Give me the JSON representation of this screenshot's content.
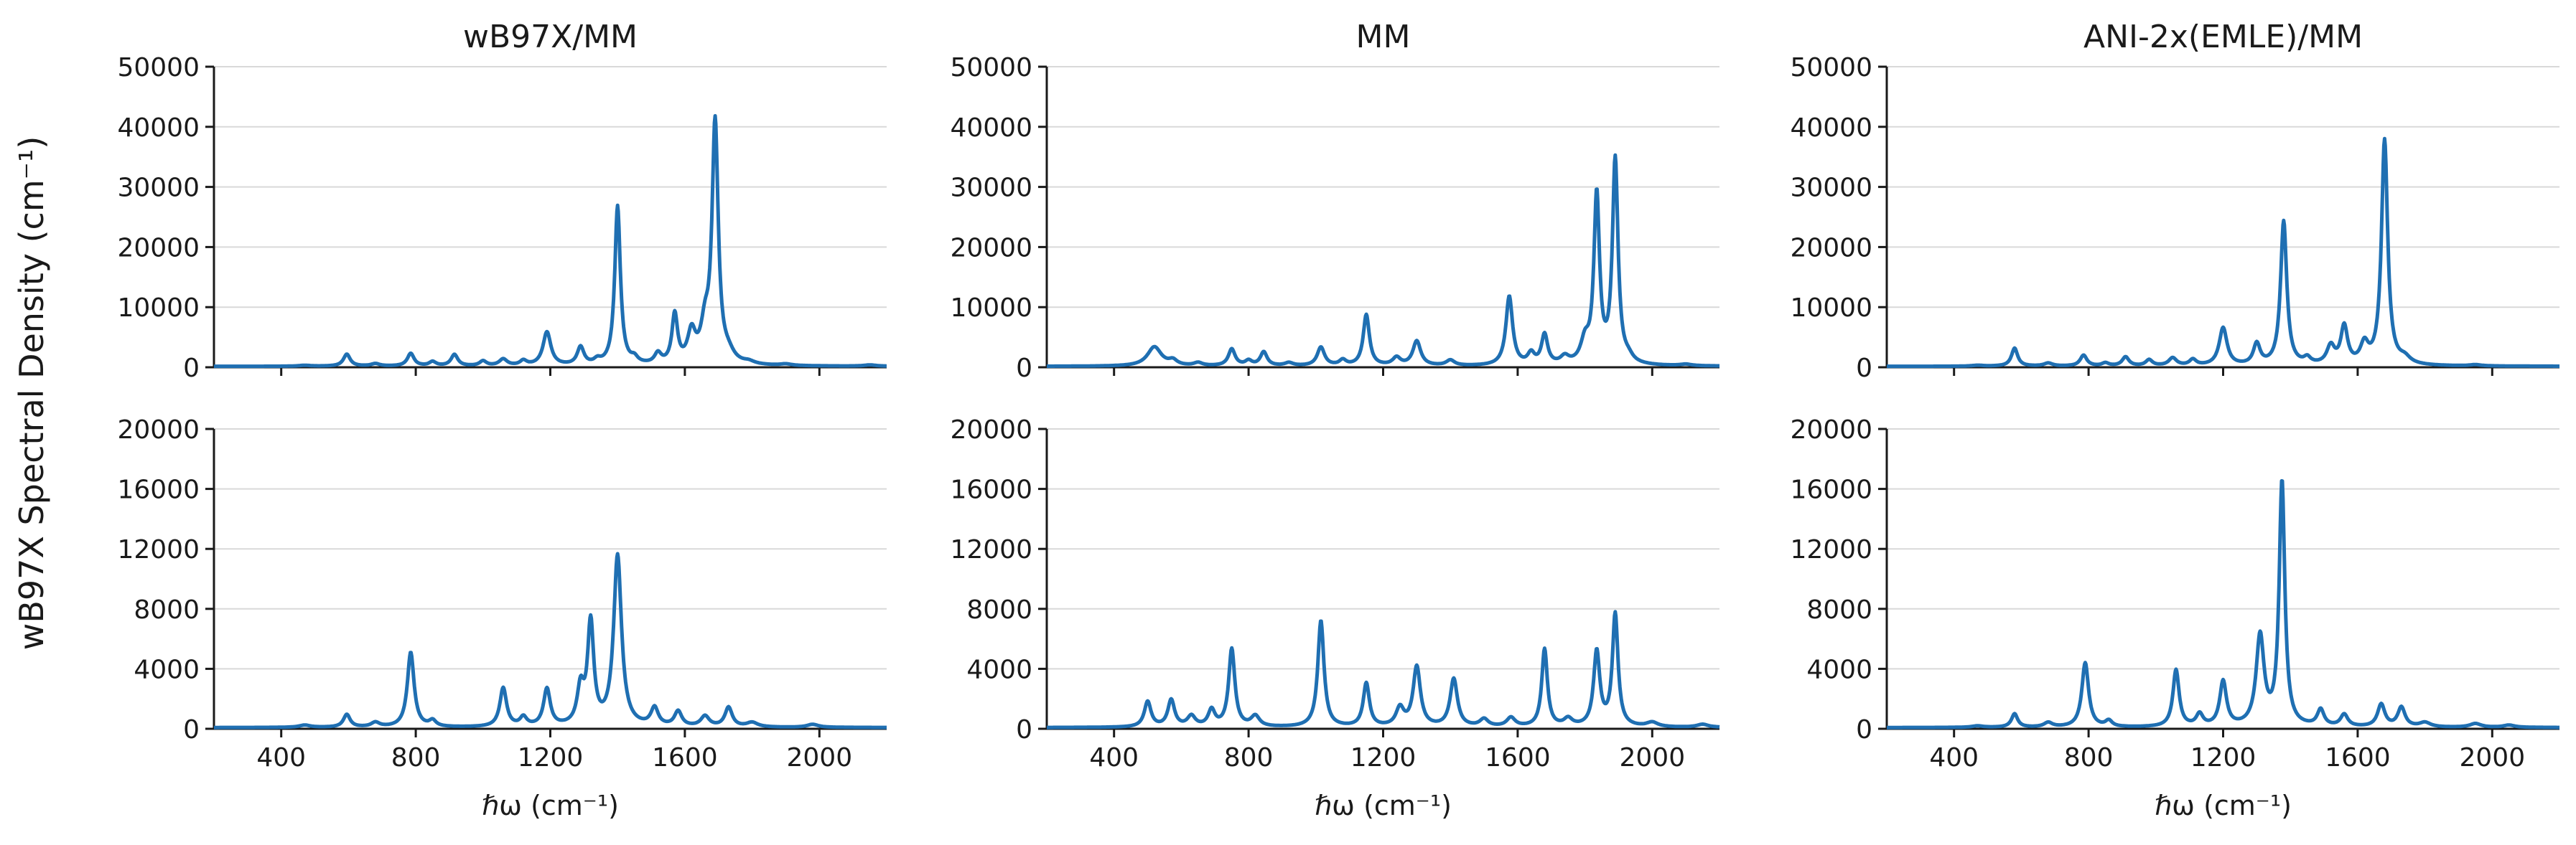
{
  "figure": {
    "ylabel": "wB97X Spectral Density (cm⁻¹)",
    "line_color": "#1f6fb2"
  },
  "chart_data": [
    {
      "type": "line",
      "title": "wB97X/MM",
      "xlabel": "",
      "xlim": [
        200,
        2200
      ],
      "ylim": [
        0,
        50000
      ],
      "yticks": [
        "0",
        "10000",
        "20000",
        "30000",
        "40000",
        "50000"
      ],
      "xticks": [
        400,
        800,
        1200,
        1600,
        2000
      ],
      "show_xtick_labels": false,
      "grid": "horizontal",
      "baseline": 150,
      "peaks": [
        [
          470,
          150,
          20
        ],
        [
          595,
          2000,
          12
        ],
        [
          680,
          400,
          15
        ],
        [
          785,
          2100,
          12
        ],
        [
          850,
          700,
          12
        ],
        [
          915,
          1900,
          12
        ],
        [
          1000,
          800,
          12
        ],
        [
          1060,
          1100,
          14
        ],
        [
          1120,
          800,
          12
        ],
        [
          1190,
          5600,
          14
        ],
        [
          1290,
          3000,
          12
        ],
        [
          1340,
          700,
          12
        ],
        [
          1400,
          26500,
          10
        ],
        [
          1450,
          900,
          12
        ],
        [
          1520,
          1700,
          12
        ],
        [
          1570,
          8200,
          10
        ],
        [
          1620,
          5000,
          14
        ],
        [
          1660,
          5500,
          15
        ],
        [
          1690,
          40000,
          11
        ],
        [
          1730,
          1300,
          20
        ],
        [
          1790,
          400,
          20
        ],
        [
          1900,
          250,
          20
        ],
        [
          2150,
          200,
          20
        ]
      ]
    },
    {
      "type": "line",
      "title": "MM",
      "xlabel": "",
      "xlim": [
        200,
        2200
      ],
      "ylim": [
        0,
        50000
      ],
      "yticks": [
        "0",
        "10000",
        "20000",
        "30000",
        "40000",
        "50000"
      ],
      "xticks": [
        400,
        800,
        1200,
        1600,
        2000
      ],
      "show_xtick_labels": false,
      "grid": "horizontal",
      "baseline": 150,
      "peaks": [
        [
          520,
          3200,
          25
        ],
        [
          575,
          800,
          15
        ],
        [
          650,
          500,
          15
        ],
        [
          750,
          2800,
          12
        ],
        [
          800,
          800,
          12
        ],
        [
          845,
          2300,
          12
        ],
        [
          920,
          500,
          15
        ],
        [
          1015,
          3100,
          13
        ],
        [
          1080,
          900,
          12
        ],
        [
          1150,
          8500,
          11
        ],
        [
          1240,
          1300,
          14
        ],
        [
          1300,
          4100,
          14
        ],
        [
          1400,
          900,
          15
        ],
        [
          1575,
          11500,
          12
        ],
        [
          1640,
          1800,
          12
        ],
        [
          1680,
          5000,
          11
        ],
        [
          1740,
          1200,
          15
        ],
        [
          1800,
          3500,
          15
        ],
        [
          1835,
          28000,
          10
        ],
        [
          1890,
          34000,
          10
        ],
        [
          1930,
          800,
          15
        ],
        [
          2100,
          250,
          20
        ]
      ]
    },
    {
      "type": "line",
      "title": "ANI-2x(EMLE)/MM",
      "xlabel": "",
      "xlim": [
        200,
        2200
      ],
      "ylim": [
        0,
        50000
      ],
      "yticks": [
        "0",
        "10000",
        "20000",
        "30000",
        "40000",
        "50000"
      ],
      "xticks": [
        400,
        800,
        1200,
        1600,
        2000
      ],
      "show_xtick_labels": false,
      "grid": "horizontal",
      "baseline": 150,
      "peaks": [
        [
          470,
          150,
          20
        ],
        [
          580,
          3000,
          11
        ],
        [
          680,
          500,
          15
        ],
        [
          785,
          1800,
          12
        ],
        [
          850,
          500,
          12
        ],
        [
          910,
          1500,
          12
        ],
        [
          980,
          1000,
          12
        ],
        [
          1050,
          1300,
          14
        ],
        [
          1110,
          1000,
          12
        ],
        [
          1200,
          6300,
          14
        ],
        [
          1300,
          3500,
          12
        ],
        [
          1380,
          24000,
          11
        ],
        [
          1450,
          1000,
          12
        ],
        [
          1520,
          3000,
          14
        ],
        [
          1560,
          6300,
          12
        ],
        [
          1620,
          3200,
          14
        ],
        [
          1680,
          37500,
          11
        ],
        [
          1740,
          1000,
          20
        ],
        [
          1950,
          200,
          20
        ]
      ]
    },
    {
      "type": "line",
      "title": "",
      "xlabel": "ℏω (cm⁻¹)",
      "xlim": [
        200,
        2200
      ],
      "ylim": [
        0,
        20000
      ],
      "yticks": [
        "0",
        "4000",
        "8000",
        "12000",
        "16000",
        "20000"
      ],
      "xticks": [
        400,
        800,
        1200,
        1600,
        2000
      ],
      "show_xtick_labels": true,
      "grid": "horizontal",
      "baseline": 80,
      "peaks": [
        [
          470,
          150,
          20
        ],
        [
          595,
          850,
          12
        ],
        [
          680,
          300,
          15
        ],
        [
          785,
          5000,
          12
        ],
        [
          850,
          400,
          12
        ],
        [
          1060,
          2600,
          12
        ],
        [
          1120,
          600,
          12
        ],
        [
          1190,
          2500,
          12
        ],
        [
          1290,
          2400,
          12
        ],
        [
          1320,
          6800,
          11
        ],
        [
          1400,
          11400,
          14
        ],
        [
          1510,
          1200,
          13
        ],
        [
          1580,
          1000,
          13
        ],
        [
          1660,
          700,
          15
        ],
        [
          1730,
          1300,
          13
        ],
        [
          1800,
          300,
          20
        ],
        [
          1980,
          200,
          20
        ]
      ]
    },
    {
      "type": "line",
      "title": "",
      "xlabel": "ℏω (cm⁻¹)",
      "xlim": [
        200,
        2200
      ],
      "ylim": [
        0,
        20000
      ],
      "yticks": [
        "0",
        "4000",
        "8000",
        "12000",
        "16000",
        "20000"
      ],
      "xticks": [
        400,
        800,
        1200,
        1600,
        2000
      ],
      "show_xtick_labels": true,
      "grid": "horizontal",
      "baseline": 80,
      "peaks": [
        [
          500,
          1700,
          12
        ],
        [
          570,
          1800,
          12
        ],
        [
          630,
          700,
          14
        ],
        [
          690,
          1100,
          12
        ],
        [
          750,
          5200,
          11
        ],
        [
          820,
          700,
          15
        ],
        [
          1015,
          7100,
          11
        ],
        [
          1150,
          2900,
          11
        ],
        [
          1250,
          1200,
          14
        ],
        [
          1300,
          4000,
          13
        ],
        [
          1410,
          3200,
          13
        ],
        [
          1500,
          500,
          15
        ],
        [
          1580,
          600,
          15
        ],
        [
          1680,
          5200,
          10
        ],
        [
          1750,
          500,
          15
        ],
        [
          1835,
          5000,
          11
        ],
        [
          1890,
          7500,
          10
        ],
        [
          2000,
          300,
          20
        ],
        [
          2150,
          200,
          20
        ]
      ]
    },
    {
      "type": "line",
      "title": "",
      "xlabel": "ℏω (cm⁻¹)",
      "xlim": [
        200,
        2200
      ],
      "ylim": [
        0,
        20000
      ],
      "yticks": [
        "0",
        "4000",
        "8000",
        "12000",
        "16000",
        "20000"
      ],
      "xticks": [
        400,
        800,
        1200,
        1600,
        2000
      ],
      "show_xtick_labels": true,
      "grid": "horizontal",
      "baseline": 80,
      "peaks": [
        [
          470,
          100,
          20
        ],
        [
          580,
          900,
          11
        ],
        [
          680,
          300,
          15
        ],
        [
          790,
          4300,
          12
        ],
        [
          860,
          400,
          12
        ],
        [
          1060,
          3800,
          11
        ],
        [
          1130,
          800,
          12
        ],
        [
          1200,
          3000,
          12
        ],
        [
          1310,
          6000,
          14
        ],
        [
          1375,
          16300,
          10
        ],
        [
          1490,
          1100,
          12
        ],
        [
          1560,
          800,
          13
        ],
        [
          1670,
          1500,
          13
        ],
        [
          1730,
          1300,
          13
        ],
        [
          1800,
          300,
          20
        ],
        [
          1950,
          250,
          20
        ],
        [
          2050,
          150,
          20
        ]
      ]
    }
  ]
}
